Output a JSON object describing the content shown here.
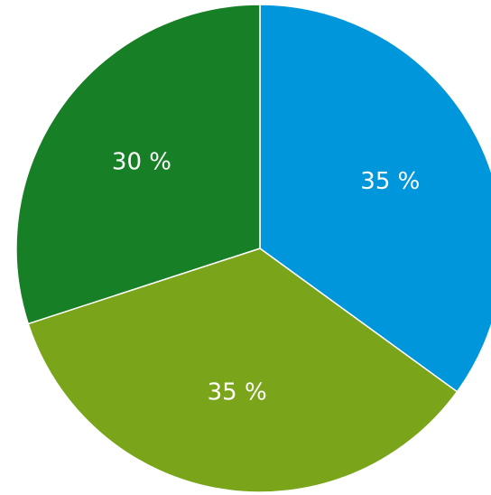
{
  "chart_data": {
    "type": "pie",
    "title": "",
    "slices": [
      {
        "label": "35 %",
        "value": 35,
        "color": "#0096DC"
      },
      {
        "label": "35 %",
        "value": 35,
        "color": "#7AA51A"
      },
      {
        "label": "30 %",
        "value": 30,
        "color": "#177F25"
      }
    ],
    "start_angle_deg": 0,
    "direction": "clockwise",
    "legend": "none"
  }
}
